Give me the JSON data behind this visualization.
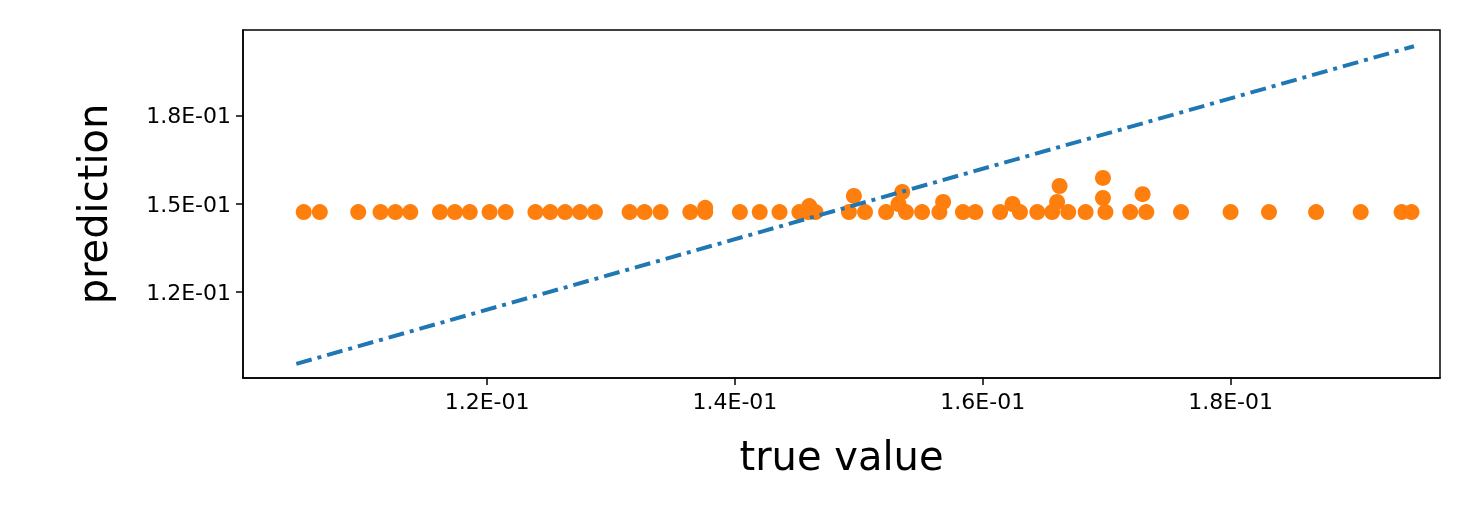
{
  "chart_data": {
    "type": "scatter",
    "xlabel": "true value",
    "ylabel": "prediction",
    "xlim": [
      0.1003,
      0.1969
    ],
    "ylim": [
      0.1006,
      0.1994
    ],
    "xticks": [
      {
        "value": 0.12,
        "label": "1.2E-01"
      },
      {
        "value": 0.14,
        "label": "1.4E-01"
      },
      {
        "value": 0.16,
        "label": "1.6E-01"
      },
      {
        "value": 0.18,
        "label": "1.8E-01"
      }
    ],
    "yticks": [
      {
        "value": 0.125,
        "label": "1.2E-01"
      },
      {
        "value": 0.15,
        "label": "1.5E-01"
      },
      {
        "value": 0.175,
        "label": "1.8E-01"
      }
    ],
    "grid": false,
    "series": [
      {
        "type": "line",
        "color": "#1f77b4",
        "marker": "none",
        "line_style": "dashdot",
        "x": [
          0.1046,
          0.1948
        ],
        "values": [
          0.1046,
          0.1948
        ]
      },
      {
        "color": "#ff7f0e",
        "marker": "circle",
        "x": [
          0.1052,
          0.1065,
          0.1096,
          0.1114,
          0.1126,
          0.1138,
          0.1162,
          0.1174,
          0.1186,
          0.1202,
          0.1215,
          0.1239,
          0.1251,
          0.1263,
          0.1275,
          0.1287,
          0.1315,
          0.1327,
          0.134,
          0.1364,
          0.1376,
          0.1404,
          0.142,
          0.1436,
          0.1452,
          0.1459,
          0.1465,
          0.1492,
          0.1505,
          0.1522,
          0.1538,
          0.1551,
          0.1565,
          0.1584,
          0.1594,
          0.1614,
          0.163,
          0.1644,
          0.1656,
          0.1669,
          0.1683,
          0.1699,
          0.1719,
          0.1732,
          0.176,
          0.18,
          0.1831,
          0.1869,
          0.1905,
          0.1938,
          0.1946,
          0.1376,
          0.146,
          0.1496,
          0.1535,
          0.1532,
          0.1568,
          0.1624,
          0.1662,
          0.166,
          0.1697,
          0.1697,
          0.1729
        ],
        "values": [
          0.1477,
          0.1477,
          0.1477,
          0.1477,
          0.1477,
          0.1477,
          0.1477,
          0.1477,
          0.1477,
          0.1477,
          0.1477,
          0.1477,
          0.1477,
          0.1477,
          0.1477,
          0.1477,
          0.1477,
          0.1477,
          0.1477,
          0.1477,
          0.1477,
          0.1477,
          0.1477,
          0.1477,
          0.1477,
          0.1477,
          0.1477,
          0.1477,
          0.1477,
          0.1477,
          0.1477,
          0.1477,
          0.1477,
          0.1477,
          0.1477,
          0.1477,
          0.1477,
          0.1477,
          0.1477,
          0.1477,
          0.1477,
          0.1477,
          0.1477,
          0.1477,
          0.1477,
          0.1477,
          0.1477,
          0.1477,
          0.1477,
          0.1477,
          0.1477,
          0.1489,
          0.1494,
          0.1523,
          0.1534,
          0.15,
          0.1506,
          0.15,
          0.1551,
          0.1506,
          0.1574,
          0.1517,
          0.1528
        ]
      }
    ]
  }
}
